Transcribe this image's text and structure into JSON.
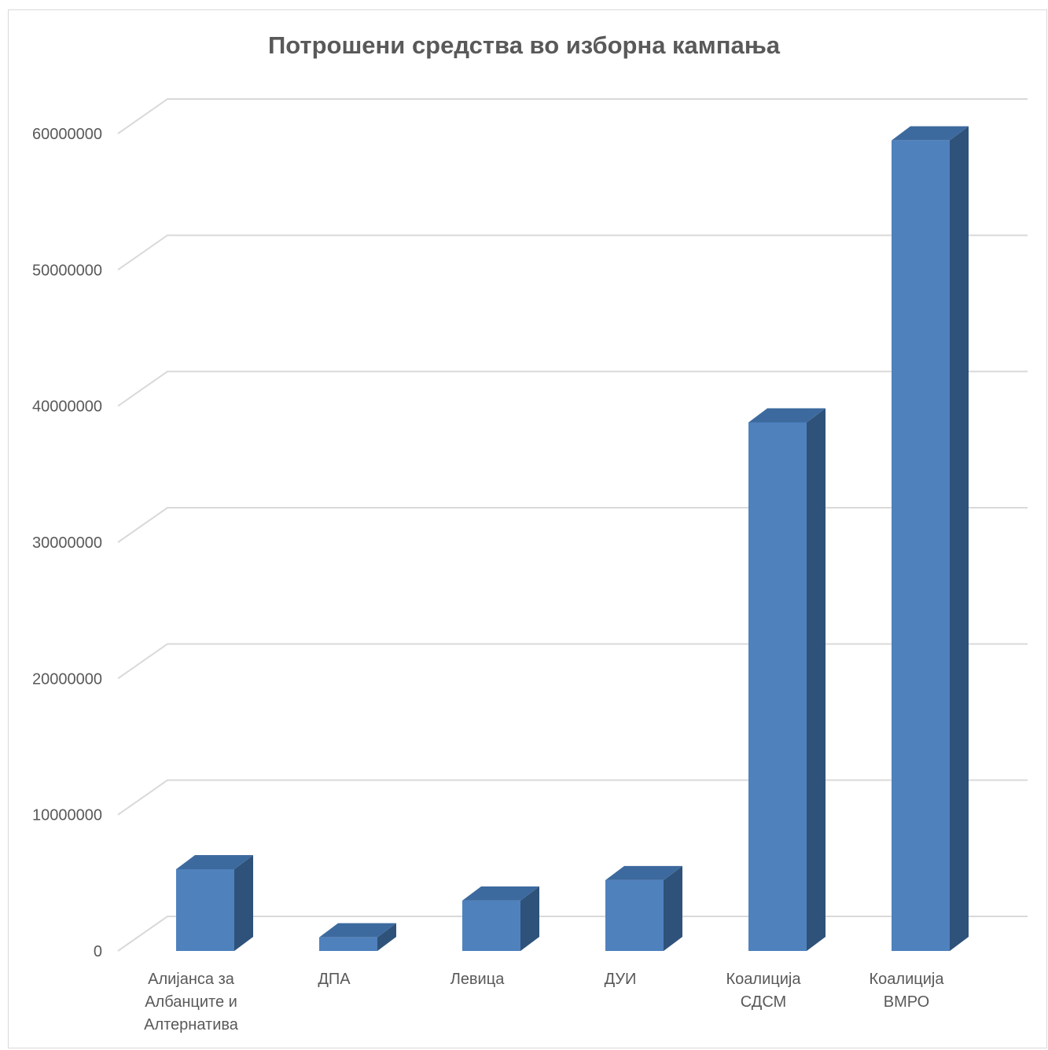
{
  "chart_data": {
    "type": "bar",
    "title": "Потрошени средства во изборна кампања",
    "categories": [
      [
        "Алијанса за",
        "Албанците и",
        "Алтернатива"
      ],
      [
        "ДПА"
      ],
      [
        "Левица"
      ],
      [
        "ДУИ"
      ],
      [
        "Коалиција",
        "СДСМ"
      ],
      [
        "Коалиција",
        "ВМРО"
      ]
    ],
    "values": [
      6000000,
      1000000,
      3700000,
      5200000,
      38800000,
      59500000
    ],
    "ylim": [
      0,
      60000000
    ],
    "yticks": [
      "0",
      "10000000",
      "20000000",
      "30000000",
      "40000000",
      "50000000",
      "60000000"
    ],
    "grid": true,
    "style": "3d-column",
    "colors": {
      "front": "#4f81bd",
      "side": "#2f527a",
      "top": "#3d6a9e",
      "grid": "#d9d9d9",
      "text": "#595959"
    }
  }
}
